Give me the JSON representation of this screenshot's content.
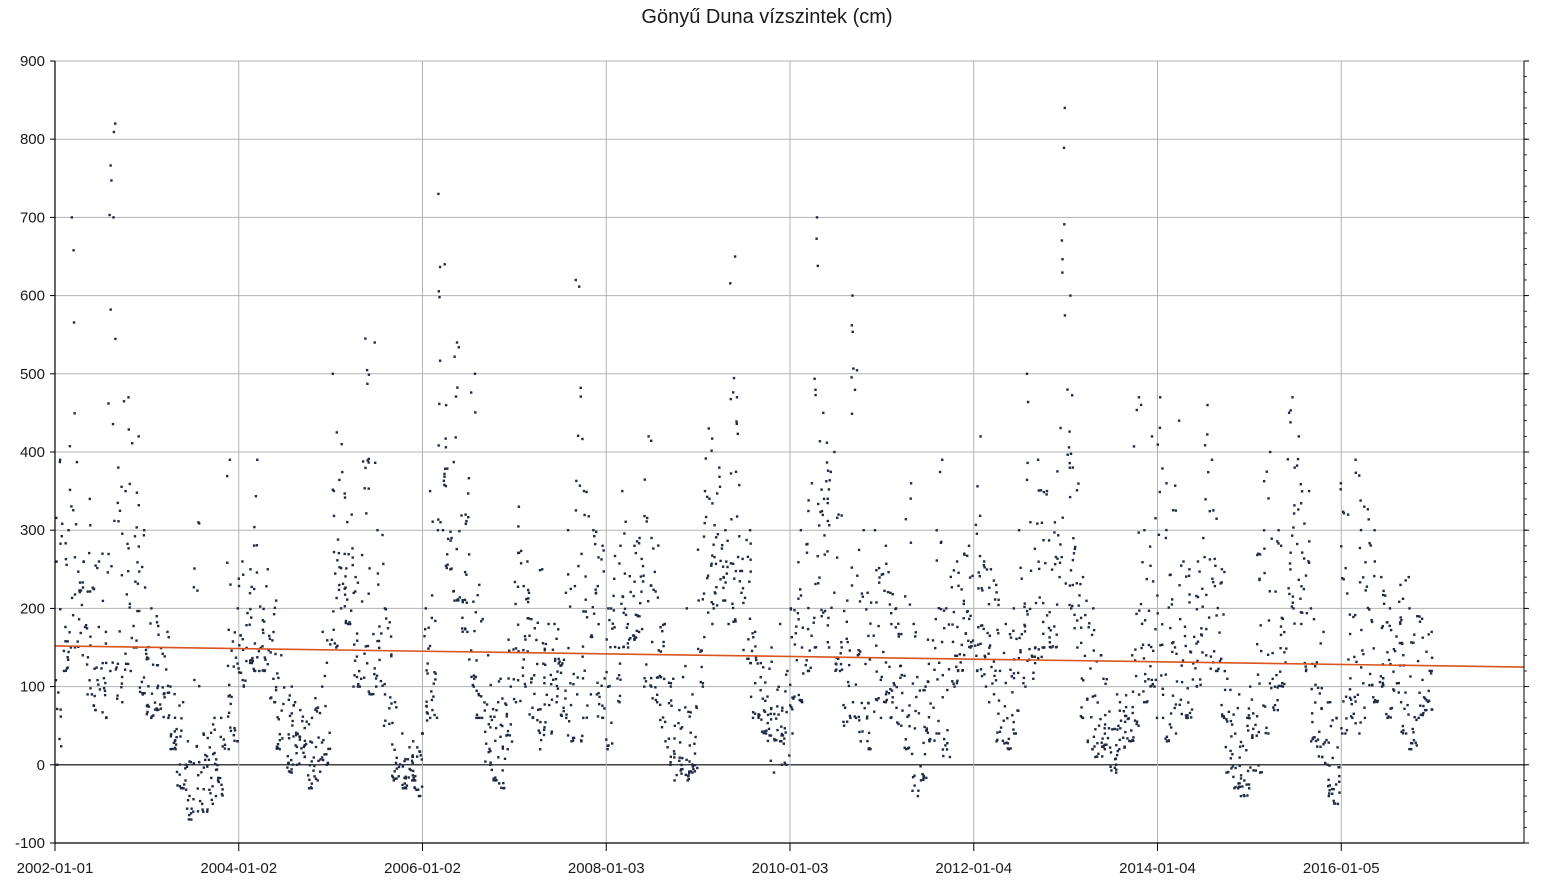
{
  "chart_data": {
    "type": "scatter",
    "title": "Gönyű Duna vízszintek (cm)",
    "xlabel": "",
    "ylabel": "",
    "ylim": [
      -100,
      900
    ],
    "yticks": [
      -100,
      0,
      100,
      200,
      300,
      400,
      500,
      600,
      700,
      800,
      900
    ],
    "yticks_labels": [
      "-100",
      "0",
      "100",
      "200",
      "300",
      "400",
      "500",
      "600",
      "700",
      "800",
      "900"
    ],
    "xlim": [
      "2002-01-01",
      "2018-01-01"
    ],
    "xticks": [
      "2002-01-01",
      "2004-01-02",
      "2006-01-02",
      "2008-01-03",
      "2010-01-03",
      "2012-01-04",
      "2014-01-04",
      "2016-01-05"
    ],
    "grid": true,
    "colors": {
      "points": "#1f2a44",
      "trend": "#d9541e",
      "grid": "#b3b3b3",
      "zero_line": "#000000"
    },
    "series": [
      {
        "kind": "points",
        "approx_monthly_range": [
          [
            "2002-01",
            0,
            390
          ],
          [
            "2002-02",
            120,
            300
          ],
          [
            "2002-03",
            150,
            700
          ],
          [
            "2002-04",
            140,
            260
          ],
          [
            "2002-05",
            90,
            340
          ],
          [
            "2002-06",
            70,
            260
          ],
          [
            "2002-07",
            60,
            270
          ],
          [
            "2002-08",
            120,
            820
          ],
          [
            "2002-09",
            80,
            380
          ],
          [
            "2002-10",
            120,
            470
          ],
          [
            "2002-11",
            150,
            420
          ],
          [
            "2002-12",
            90,
            300
          ],
          [
            "2003-01",
            60,
            200
          ],
          [
            "2003-02",
            70,
            190
          ],
          [
            "2003-03",
            60,
            170
          ],
          [
            "2003-04",
            20,
            100
          ],
          [
            "2003-05",
            -30,
            80
          ],
          [
            "2003-06",
            -70,
            30
          ],
          [
            "2003-07",
            -60,
            310
          ],
          [
            "2003-08",
            -60,
            40
          ],
          [
            "2003-09",
            -50,
            60
          ],
          [
            "2003-10",
            -40,
            60
          ],
          [
            "2003-11",
            20,
            390
          ],
          [
            "2003-12",
            30,
            200
          ],
          [
            "2004-01",
            100,
            260
          ],
          [
            "2004-02",
            130,
            250
          ],
          [
            "2004-03",
            120,
            390
          ],
          [
            "2004-04",
            120,
            250
          ],
          [
            "2004-05",
            80,
            210
          ],
          [
            "2004-06",
            20,
            140
          ],
          [
            "2004-07",
            -10,
            100
          ],
          [
            "2004-08",
            0,
            80
          ],
          [
            "2004-09",
            10,
            70
          ],
          [
            "2004-10",
            -30,
            60
          ],
          [
            "2004-11",
            -20,
            100
          ],
          [
            "2004-12",
            0,
            170
          ],
          [
            "2005-01",
            150,
            500
          ],
          [
            "2005-02",
            200,
            410
          ],
          [
            "2005-03",
            180,
            320
          ],
          [
            "2005-04",
            100,
            240
          ],
          [
            "2005-05",
            110,
            545
          ],
          [
            "2005-06",
            90,
            540
          ],
          [
            "2005-07",
            100,
            300
          ],
          [
            "2005-08",
            50,
            200
          ],
          [
            "2005-09",
            -20,
            80
          ],
          [
            "2005-10",
            -30,
            40
          ],
          [
            "2005-11",
            -20,
            30
          ],
          [
            "2005-12",
            -40,
            40
          ],
          [
            "2006-01",
            40,
            200
          ],
          [
            "2006-02",
            60,
            350
          ],
          [
            "2006-03",
            300,
            730
          ],
          [
            "2006-04",
            250,
            460
          ],
          [
            "2006-05",
            210,
            540
          ],
          [
            "2006-06",
            170,
            320
          ],
          [
            "2006-07",
            100,
            500
          ],
          [
            "2006-08",
            60,
            230
          ],
          [
            "2006-09",
            0,
            140
          ],
          [
            "2006-10",
            -20,
            80
          ],
          [
            "2006-11",
            -30,
            110
          ],
          [
            "2006-12",
            20,
            160
          ],
          [
            "2007-01",
            80,
            330
          ],
          [
            "2007-02",
            100,
            260
          ],
          [
            "2007-03",
            60,
            220
          ],
          [
            "2007-04",
            20,
            250
          ],
          [
            "2007-05",
            40,
            180
          ],
          [
            "2007-06",
            80,
            180
          ],
          [
            "2007-07",
            60,
            220
          ],
          [
            "2007-08",
            30,
            300
          ],
          [
            "2007-09",
            30,
            620
          ],
          [
            "2007-10",
            60,
            350
          ],
          [
            "2007-11",
            90,
            300
          ],
          [
            "2007-12",
            60,
            280
          ],
          [
            "2008-01",
            20,
            200
          ],
          [
            "2008-02",
            80,
            280
          ],
          [
            "2008-03",
            150,
            350
          ],
          [
            "2008-04",
            160,
            280
          ],
          [
            "2008-05",
            170,
            290
          ],
          [
            "2008-06",
            100,
            420
          ],
          [
            "2008-07",
            80,
            290
          ],
          [
            "2008-08",
            30,
            180
          ],
          [
            "2008-09",
            0,
            110
          ],
          [
            "2008-10",
            -20,
            70
          ],
          [
            "2008-11",
            -20,
            200
          ],
          [
            "2008-12",
            -10,
            90
          ],
          [
            "2009-01",
            100,
            350
          ],
          [
            "2009-02",
            180,
            430
          ],
          [
            "2009-03",
            200,
            380
          ],
          [
            "2009-04",
            210,
            300
          ],
          [
            "2009-05",
            180,
            650
          ],
          [
            "2009-06",
            220,
            470
          ],
          [
            "2009-07",
            130,
            300
          ],
          [
            "2009-08",
            60,
            170
          ],
          [
            "2009-09",
            40,
            130
          ],
          [
            "2009-10",
            -10,
            150
          ],
          [
            "2009-11",
            30,
            180
          ],
          [
            "2009-12",
            0,
            120
          ],
          [
            "2010-01",
            40,
            200
          ],
          [
            "2010-02",
            80,
            300
          ],
          [
            "2010-03",
            120,
            360
          ],
          [
            "2010-04",
            150,
            700
          ],
          [
            "2010-05",
            190,
            450
          ],
          [
            "2010-06",
            150,
            400
          ],
          [
            "2010-07",
            120,
            320
          ],
          [
            "2010-08",
            50,
            210
          ],
          [
            "2010-09",
            60,
            600
          ],
          [
            "2010-10",
            30,
            300
          ],
          [
            "2010-11",
            20,
            220
          ],
          [
            "2010-12",
            60,
            300
          ],
          [
            "2011-01",
            80,
            280
          ],
          [
            "2011-02",
            60,
            220
          ],
          [
            "2011-03",
            50,
            200
          ],
          [
            "2011-04",
            20,
            360
          ],
          [
            "2011-05",
            -40,
            180
          ],
          [
            "2011-06",
            -20,
            100
          ],
          [
            "2011-07",
            30,
            160
          ],
          [
            "2011-08",
            40,
            390
          ],
          [
            "2011-09",
            10,
            200
          ],
          [
            "2011-10",
            100,
            260
          ],
          [
            "2011-11",
            120,
            270
          ],
          [
            "2011-12",
            150,
            280
          ],
          [
            "2012-01",
            120,
            420
          ],
          [
            "2012-02",
            100,
            260
          ],
          [
            "2012-03",
            80,
            250
          ],
          [
            "2012-04",
            30,
            230
          ],
          [
            "2012-05",
            20,
            180
          ],
          [
            "2012-06",
            40,
            200
          ],
          [
            "2012-07",
            100,
            300
          ],
          [
            "2012-08",
            110,
            500
          ],
          [
            "2012-09",
            130,
            390
          ],
          [
            "2012-10",
            150,
            350
          ],
          [
            "2012-11",
            150,
            310
          ],
          [
            "2012-12",
            240,
            840
          ],
          [
            "2013-01",
            200,
            600
          ],
          [
            "2013-02",
            150,
            380
          ],
          [
            "2013-03",
            60,
            240
          ],
          [
            "2013-04",
            20,
            200
          ],
          [
            "2013-05",
            10,
            140
          ],
          [
            "2013-06",
            20,
            110
          ],
          [
            "2013-07",
            -10,
            90
          ],
          [
            "2013-08",
            20,
            80
          ],
          [
            "2013-09",
            30,
            140
          ],
          [
            "2013-10",
            50,
            470
          ],
          [
            "2013-11",
            80,
            300
          ],
          [
            "2013-12",
            100,
            420
          ],
          [
            "2014-01",
            60,
            470
          ],
          [
            "2014-02",
            30,
            360
          ],
          [
            "2014-03",
            40,
            440
          ],
          [
            "2014-04",
            60,
            260
          ],
          [
            "2014-05",
            60,
            250
          ],
          [
            "2014-06",
            100,
            260
          ],
          [
            "2014-07",
            140,
            460
          ],
          [
            "2014-08",
            120,
            390
          ],
          [
            "2014-09",
            60,
            250
          ],
          [
            "2014-10",
            -10,
            110
          ],
          [
            "2014-11",
            -30,
            90
          ],
          [
            "2014-12",
            -40,
            60
          ],
          [
            "2015-01",
            -30,
            100
          ],
          [
            "2015-02",
            -10,
            270
          ],
          [
            "2015-03",
            40,
            400
          ],
          [
            "2015-04",
            70,
            300
          ],
          [
            "2015-05",
            100,
            280
          ],
          [
            "2015-06",
            200,
            470
          ],
          [
            "2015-07",
            180,
            420
          ],
          [
            "2015-08",
            120,
            350
          ],
          [
            "2015-09",
            30,
            200
          ],
          [
            "2015-10",
            10,
            170
          ],
          [
            "2015-11",
            -40,
            80
          ],
          [
            "2015-12",
            -50,
            60
          ],
          [
            "2016-01",
            40,
            360
          ],
          [
            "2016-02",
            60,
            320
          ],
          [
            "2016-03",
            40,
            390
          ],
          [
            "2016-04",
            60,
            330
          ],
          [
            "2016-05",
            80,
            300
          ],
          [
            "2016-06",
            100,
            240
          ],
          [
            "2016-07",
            60,
            200
          ],
          [
            "2016-08",
            80,
            230
          ],
          [
            "2016-09",
            40,
            240
          ],
          [
            "2016-10",
            20,
            200
          ],
          [
            "2016-11",
            60,
            190
          ],
          [
            "2016-12",
            70,
            170
          ]
        ]
      },
      {
        "kind": "trend",
        "x": [
          "2002-01-01",
          "2018-01-01"
        ],
        "y": [
          152,
          125
        ]
      }
    ]
  }
}
